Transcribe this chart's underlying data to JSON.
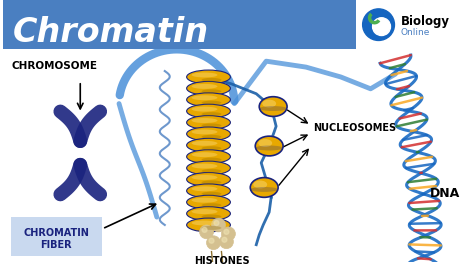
{
  "title": "Chromatin",
  "title_bg": "#4a7fc1",
  "title_text_color": "#ffffff",
  "bg_color": "#ffffff",
  "labels": {
    "chromosome": "CHROMOSOME",
    "chromatin_fiber": "CHROMATIN\nFIBER",
    "nucleosomes": "NUCLEOSOMES",
    "histones": "HISTONES",
    "dna": "DNA"
  },
  "chromosome_color": "#1a237e",
  "chromatin_fiber_bg": "#c9d9ef",
  "nucleosome_color": "#e8a800",
  "nucleosome_edge": "#1a237e",
  "dna_strand_color": "#1a6cc4",
  "dna_bp_colors": [
    "#d32f2f",
    "#2e7d32",
    "#f9a825",
    "#1565c0"
  ],
  "fiber_color": "#4a90d9",
  "fiber_coil_color": "#1a237e",
  "histones_color": "#d4c090"
}
